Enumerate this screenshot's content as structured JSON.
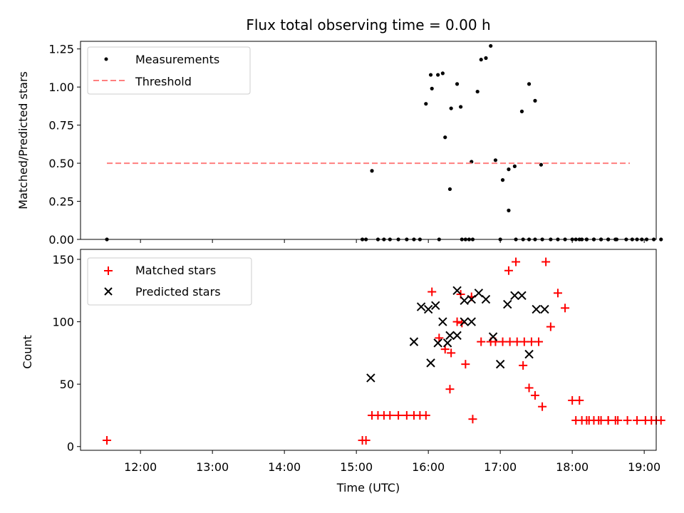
{
  "chart_data": [
    {
      "type": "scatter",
      "title": "Flux total observing time = 0.00 h",
      "xlabel": "",
      "ylabel": "Matched/Predicted stars",
      "xlim": [
        "11:10",
        "19:10"
      ],
      "ylim": [
        0,
        1.3
      ],
      "xticks": [
        "12:00",
        "13:00",
        "14:00",
        "15:00",
        "16:00",
        "17:00",
        "18:00",
        "19:00"
      ],
      "yticks": [
        "0.00",
        "0.25",
        "0.50",
        "0.75",
        "1.00",
        "1.25"
      ],
      "legend_location": "upper-left",
      "grid": false,
      "series": [
        {
          "name": "Measurements",
          "kind": "dots",
          "color": "#000000",
          "x": [
            "11:32",
            "15:05",
            "15:08",
            "15:13",
            "15:18",
            "15:23",
            "15:28",
            "15:35",
            "15:42",
            "15:48",
            "15:53",
            "15:58",
            "15:62",
            "15:68",
            "15:72",
            "15:79",
            "15:87",
            "15:96",
            "16:03",
            "16:09",
            "16:14",
            "16:18",
            "16:24",
            "16:28",
            "16:31",
            "16:34",
            "16:37",
            "16:41",
            "16:44",
            "16:48",
            "16:52",
            "16:56",
            "16:62",
            "16:67",
            "16:72",
            "16:78",
            "16:84",
            "16:89",
            "16:94",
            "17:00",
            "17:07",
            "17:13",
            "17:19",
            "17:24",
            "17:29",
            "17:35",
            "17:42",
            "17:48",
            "17:54",
            "17:60",
            "17:66",
            "17:72",
            "17:78",
            "17:84",
            "17:90",
            "17:96",
            "18:03",
            "18:08",
            "18:12",
            "18:18",
            "18:24",
            "18:30",
            "18:37",
            "18:45",
            "18:50",
            "18:54",
            "18:58",
            "18:62",
            "18:68",
            "18:74"
          ],
          "y": [
            0,
            0,
            0,
            0.45,
            0,
            0,
            0,
            0,
            0,
            0,
            0,
            0.89,
            1.08,
            1.08,
            1.09,
            0.86,
            0.87,
            0.51,
            0.99,
            0,
            0.67,
            0.33,
            1.02,
            0,
            0,
            0,
            0,
            0.97,
            1.18,
            1.19,
            1.27,
            0.52,
            0.39,
            0.46,
            0.48,
            0.84,
            1.02,
            0.91,
            0.49,
            0,
            0.19,
            0,
            0,
            0,
            0,
            0,
            0,
            0,
            0,
            0,
            0,
            0,
            0,
            0,
            0,
            0,
            0,
            0,
            0,
            0,
            0,
            0,
            0,
            0,
            0,
            0,
            0,
            0,
            0,
            0
          ],
          "note": ""
        },
        {
          "name": "Threshold",
          "kind": "dashed-line",
          "color": "#ff7f7f",
          "x": [
            "11:32",
            "18:48"
          ],
          "y": [
            0.5,
            0.5
          ]
        }
      ]
    },
    {
      "type": "scatter",
      "title": "",
      "xlabel": "Time (UTC)",
      "ylabel": "Count",
      "xlim": [
        "11:10",
        "19:10"
      ],
      "ylim": [
        -3,
        158
      ],
      "xticks": [
        "12:00",
        "13:00",
        "14:00",
        "15:00",
        "16:00",
        "17:00",
        "18:00",
        "19:00"
      ],
      "yticks": [
        "0",
        "50",
        "100",
        "150"
      ],
      "legend_location": "upper-left",
      "grid": false,
      "series": [
        {
          "name": "Matched stars",
          "kind": "plus",
          "color": "#ff0000",
          "x": [
            "11:32",
            "15:05",
            "15:08",
            "15:13",
            "15:18",
            "15:23",
            "15:28",
            "15:35",
            "15:42",
            "15:48",
            "15:53",
            "15:58",
            "15:79",
            "15:87",
            "15:96",
            "16:03",
            "16:09",
            "16:14",
            "16:18",
            "16:24",
            "16:28",
            "16:31",
            "16:37",
            "16:44",
            "16:52",
            "16:56",
            "16:62",
            "16:68",
            "16:74",
            "16:80",
            "16:86",
            "16:92",
            "16:98",
            "17:07",
            "17:13",
            "17:19",
            "17:24",
            "17:29",
            "17:35",
            "17:42",
            "17:48",
            "17:54",
            "17:60",
            "17:66",
            "17:72",
            "17:78",
            "17:84",
            "17:90",
            "17:96",
            "18:03",
            "18:08",
            "18:14",
            "18:22",
            "18:30",
            "18:38",
            "18:46",
            "18:54",
            "18:61",
            "18:66",
            "18:70",
            "18:74"
          ],
          "y": [
            5,
            5,
            5,
            25,
            25,
            25,
            25,
            25,
            25,
            25,
            25,
            25,
            75,
            122,
            120,
            124,
            87,
            78,
            46,
            100,
            99,
            66,
            22,
            84,
            84,
            84,
            84,
            84,
            84,
            84,
            84,
            84,
            148,
            141,
            148,
            65,
            47,
            41,
            32,
            96,
            123,
            111,
            37,
            37,
            21,
            21,
            21,
            21,
            21,
            21,
            21,
            21,
            21,
            21,
            21,
            21,
            21,
            21,
            21,
            21,
            21
          ],
          "note": ""
        },
        {
          "name": "Predicted stars",
          "kind": "x",
          "color": "#000000",
          "x": [
            "15:12",
            "15:48",
            "15:54",
            "15:60",
            "15:66",
            "15:72",
            "15:78",
            "15:84",
            "15:90",
            "15:96",
            "16:02",
            "16:08",
            "16:16",
            "16:24",
            "16:30",
            "16:36",
            "16:42",
            "16:48",
            "16:54",
            "16:60",
            "16:66",
            "16:72",
            "16:78",
            "16:84",
            "16:90",
            "16:97"
          ],
          "y": [
            55,
            84,
            112,
            110,
            113,
            100,
            89,
            89,
            100,
            100,
            67,
            83,
            83,
            125,
            117,
            118,
            123,
            118,
            88,
            66,
            114,
            121,
            121,
            74,
            110,
            110
          ],
          "note": ""
        }
      ]
    }
  ]
}
